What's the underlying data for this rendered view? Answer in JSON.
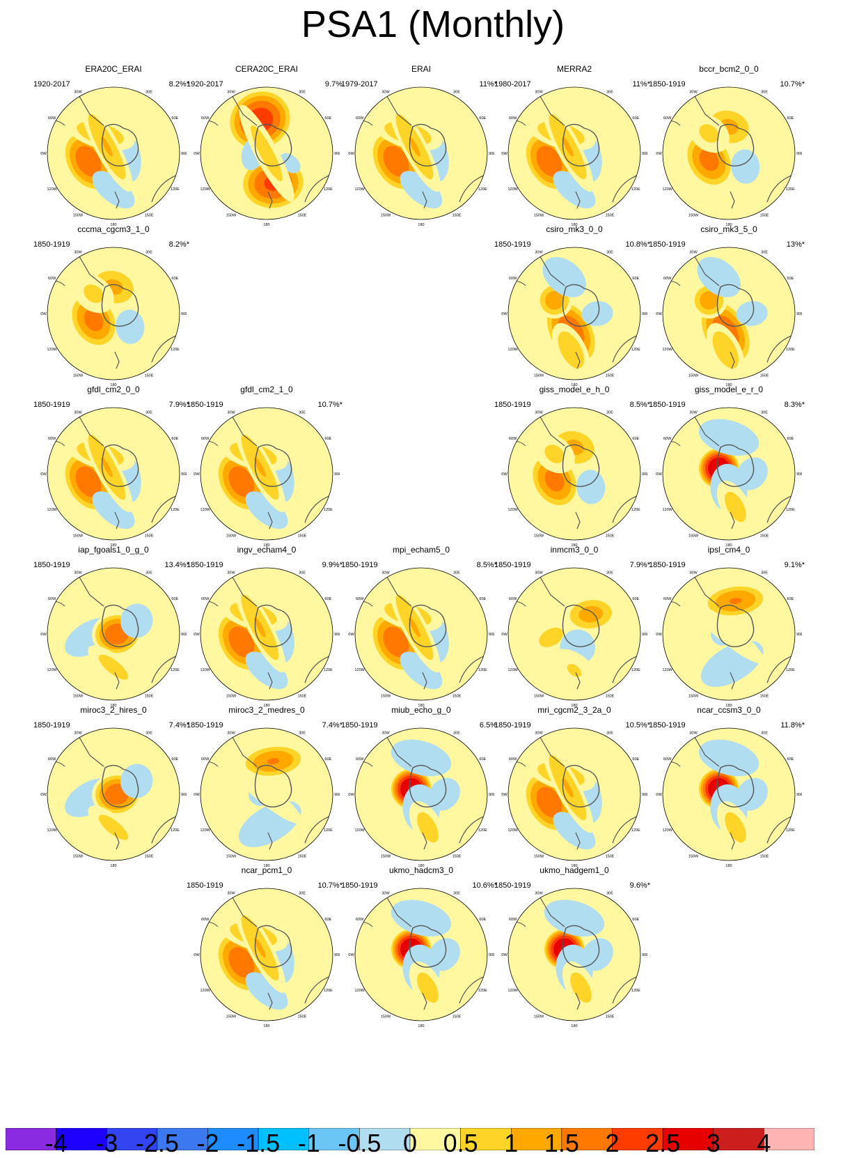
{
  "title": "PSA1 (Monthly)",
  "chart_data": {
    "type": "small-multiples polar contour maps",
    "projection": "south polar stereographic",
    "longitude_labels": [
      "0",
      "30E",
      "60E",
      "90E",
      "120E",
      "150E",
      "180",
      "150W",
      "120W",
      "90W",
      "60W",
      "30W"
    ],
    "colorbar": {
      "labels": [
        "-4",
        "-3",
        "-2.5",
        "-2",
        "-1.5",
        "-1",
        "-0.5",
        "0",
        "0.5",
        "1",
        "1.5",
        "2",
        "2.5",
        "3",
        "4"
      ],
      "colors": [
        "#8a2be2",
        "#1e00ff",
        "#3245f0",
        "#3c78f0",
        "#1e8cff",
        "#00c0ff",
        "#6cc6f5",
        "#b0ddf0",
        "#fff8a0",
        "#ffd428",
        "#ffa800",
        "#ff7800",
        "#ff3c00",
        "#e60000",
        "#cd1e1e",
        "#ffb4b4"
      ]
    },
    "panels": [
      {
        "name": "ERA20C_ERAI",
        "years": "1920-2017",
        "pct": "8.2%*",
        "variant": 0
      },
      {
        "name": "CERA20C_ERAI",
        "years": "1920-2017",
        "pct": "9.7%",
        "variant": 1
      },
      {
        "name": "ERAI",
        "years": "1979-2017",
        "pct": "11%*",
        "variant": 0
      },
      {
        "name": "MERRA2",
        "years": "1980-2017",
        "pct": "11%*",
        "variant": 0
      },
      {
        "name": "bccr_bcm2_0_0",
        "years": "1850-1919",
        "pct": "10.7%*",
        "variant": 2
      },
      {
        "name": "cccma_cgcm3_1_0",
        "years": "1850-1919",
        "pct": "8.2%*",
        "variant": 2
      },
      {
        "name": "csiro_mk3_0_0",
        "years": "1850-1919",
        "pct": "10.8%*",
        "variant": 3
      },
      {
        "name": "csiro_mk3_5_0",
        "years": "1850-1919",
        "pct": "13%*",
        "variant": 3
      },
      {
        "name": "gfdl_cm2_0_0",
        "years": "1850-1919",
        "pct": "7.9%*",
        "variant": 0
      },
      {
        "name": "gfdl_cm2_1_0",
        "years": "1850-1919",
        "pct": "10.7%*",
        "variant": 0
      },
      {
        "name": "giss_model_e_h_0",
        "years": "1850-1919",
        "pct": "8.5%*",
        "variant": 2
      },
      {
        "name": "giss_model_e_r_0",
        "years": "1850-1919",
        "pct": "8.3%*",
        "variant": 4
      },
      {
        "name": "iap_fgoals1_0_g_0",
        "years": "1850-1919",
        "pct": "13.4%*",
        "variant": 5
      },
      {
        "name": "ingv_echam4_0",
        "years": "1850-1919",
        "pct": "9.9%*",
        "variant": 0
      },
      {
        "name": "mpi_echam5_0",
        "years": "1850-1919",
        "pct": "8.5%*",
        "variant": 0
      },
      {
        "name": "inmcm3_0_0",
        "years": "1850-1919",
        "pct": "7.9%*",
        "variant": 6
      },
      {
        "name": "ipsl_cm4_0",
        "years": "1850-1919",
        "pct": "9.1%*",
        "variant": 7
      },
      {
        "name": "miroc3_2_hires_0",
        "years": "1850-1919",
        "pct": "7.4%*",
        "variant": 5
      },
      {
        "name": "miroc3_2_medres_0",
        "years": "1850-1919",
        "pct": "7.4%*",
        "variant": 7
      },
      {
        "name": "miub_echo_g_0",
        "years": "1850-1919",
        "pct": "6.5%",
        "variant": 4
      },
      {
        "name": "mri_cgcm2_3_2a_0",
        "years": "1850-1919",
        "pct": "10.5%*",
        "variant": 0
      },
      {
        "name": "ncar_ccsm3_0_0",
        "years": "1850-1919",
        "pct": "11.8%*",
        "variant": 4
      },
      {
        "name": "ncar_pcm1_0",
        "years": "1850-1919",
        "pct": "10.7%*",
        "variant": 0
      },
      {
        "name": "ukmo_hadcm3_0",
        "years": "1850-1919",
        "pct": "10.6%*",
        "variant": 4
      },
      {
        "name": "ukmo_hadgem1_0",
        "years": "1850-1919",
        "pct": "9.6%*",
        "variant": 4
      }
    ]
  }
}
